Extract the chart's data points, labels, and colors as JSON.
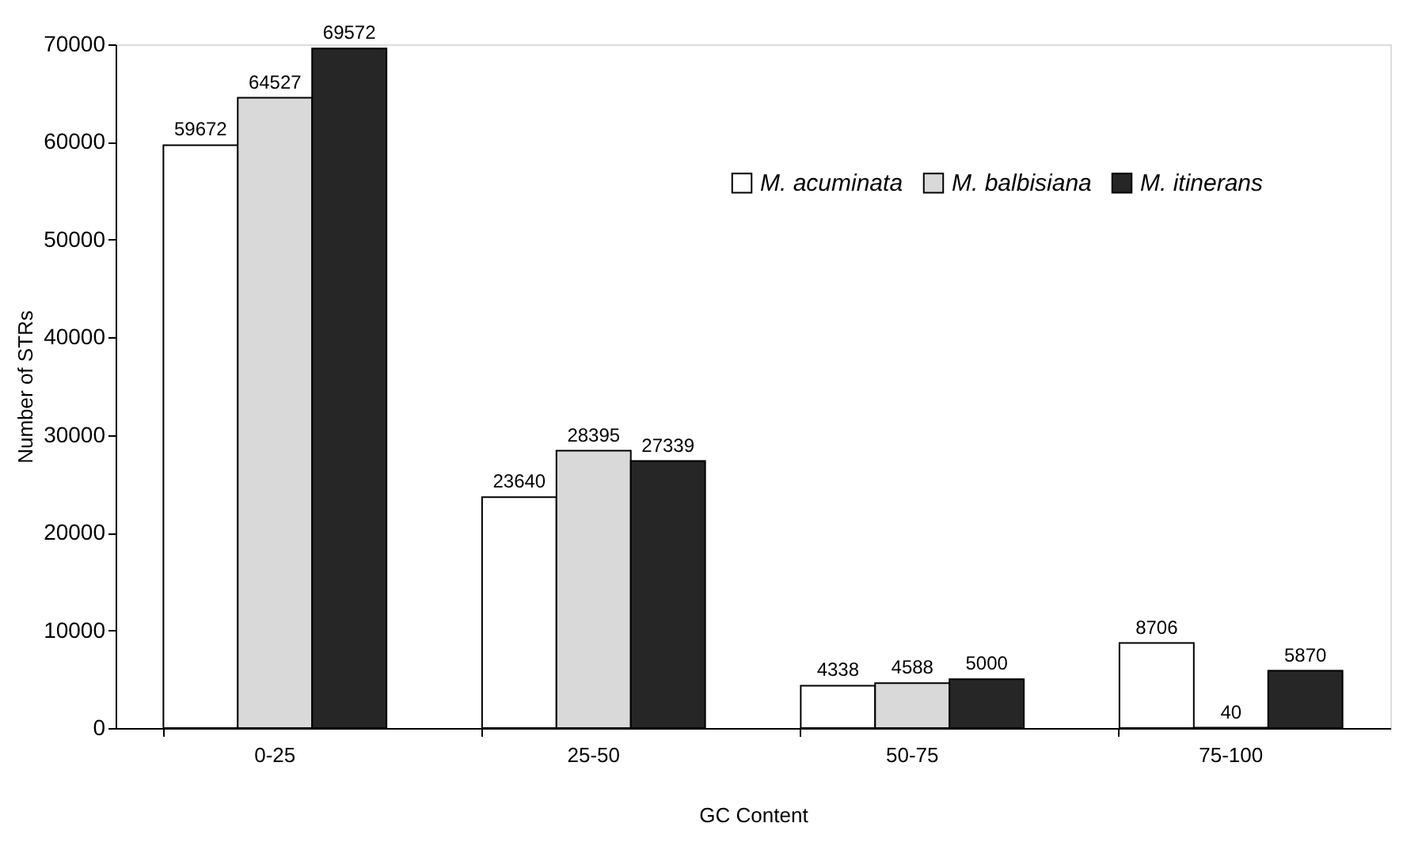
{
  "chart_data": {
    "type": "bar",
    "xlabel": "GC Content",
    "ylabel": "Number of STRs",
    "categories": [
      "0-25",
      "25-50",
      "50-75",
      "75-100"
    ],
    "series": [
      {
        "name": "M. acuminata",
        "color": "#ffffff",
        "values": [
          59672,
          23640,
          4338,
          8706
        ]
      },
      {
        "name": "M. balbisiana",
        "color": "#d9d9d9",
        "values": [
          64527,
          28395,
          4588,
          40
        ]
      },
      {
        "name": "M. itinerans",
        "color": "#262626",
        "values": [
          69572,
          27339,
          5000,
          5870
        ]
      }
    ],
    "ylim": [
      0,
      70000
    ],
    "yticks": [
      0,
      10000,
      20000,
      30000,
      40000,
      50000,
      60000,
      70000
    ],
    "grid": false,
    "legend": "top right",
    "data_labels": true
  }
}
